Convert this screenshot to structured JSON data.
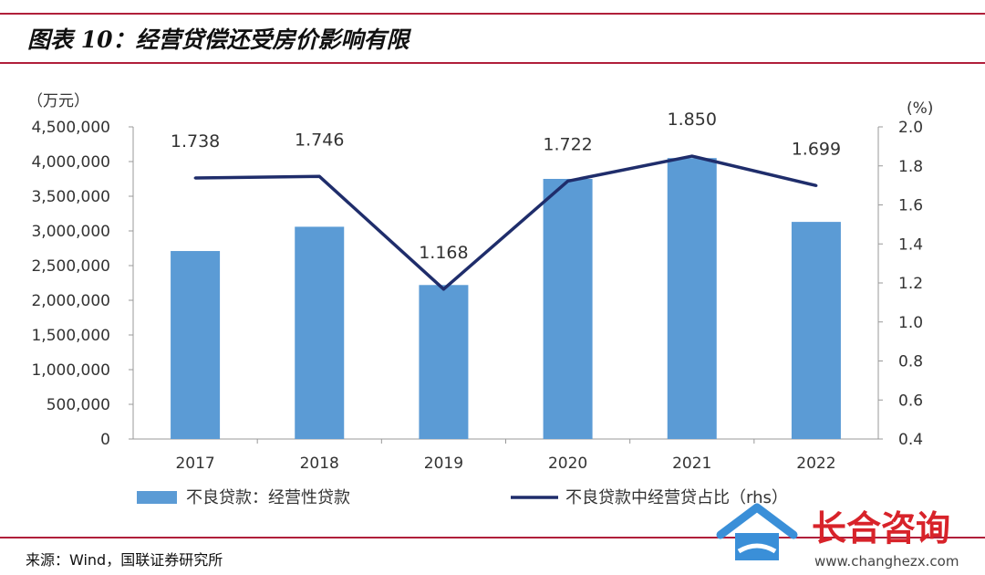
{
  "header": {
    "title": "图表 10：经营贷偿还受房价影响有限"
  },
  "source": "来源：Wind，国联证券研究所",
  "watermark": {
    "brand": "长合咨询",
    "url": "www.changhezx.com"
  },
  "colors": {
    "rule": "#b01f3a",
    "bar": "#5b9bd5",
    "line": "#1f2d6b"
  },
  "chart_data": {
    "type": "bar+line",
    "categories": [
      "2017",
      "2018",
      "2019",
      "2020",
      "2021",
      "2022"
    ],
    "series": [
      {
        "name": "不良贷款：经营性贷款",
        "type": "bar",
        "axis": "left",
        "values": [
          2710000,
          3060000,
          2220000,
          3750000,
          4050000,
          3130000
        ]
      },
      {
        "name": "不良贷款中经营贷占比（rhs）",
        "type": "line",
        "axis": "right",
        "values": [
          1.738,
          1.746,
          1.168,
          1.722,
          1.85,
          1.699
        ],
        "labels": [
          "1.738",
          "1.746",
          "1.168",
          "1.722",
          "1.850",
          "1.699"
        ]
      }
    ],
    "yleft": {
      "unit": "（万元）",
      "min": 0,
      "max": 4500000,
      "ticks": [
        "0",
        "500,000",
        "1,000,000",
        "1,500,000",
        "2,000,000",
        "2,500,000",
        "3,000,000",
        "3,500,000",
        "4,000,000",
        "4,500,000"
      ]
    },
    "yright": {
      "unit": "(%)",
      "min": 0.4,
      "max": 2.0,
      "ticks": [
        "0.4",
        "0.6",
        "0.8",
        "1.0",
        "1.2",
        "1.4",
        "1.6",
        "1.8",
        "2.0"
      ]
    },
    "legend": [
      "不良贷款：经营性贷款",
      "不良贷款中经营贷占比（rhs）"
    ],
    "legend_position": "bottom",
    "grid": false
  }
}
